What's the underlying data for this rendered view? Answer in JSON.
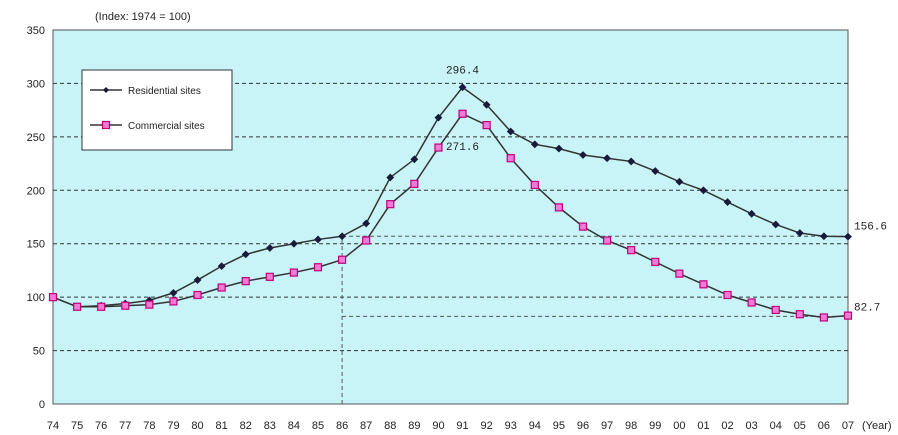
{
  "chart_data": {
    "type": "line",
    "title": "",
    "unit_note": "(Index: 1974 = 100)",
    "x_unit": "(Year)",
    "categories": [
      "74",
      "75",
      "76",
      "77",
      "78",
      "79",
      "80",
      "81",
      "82",
      "83",
      "84",
      "85",
      "86",
      "87",
      "88",
      "89",
      "90",
      "91",
      "92",
      "93",
      "94",
      "95",
      "96",
      "97",
      "98",
      "99",
      "00",
      "01",
      "02",
      "03",
      "04",
      "05",
      "06",
      "07"
    ],
    "ylim": [
      0,
      350
    ],
    "yticks": [
      0,
      50,
      100,
      150,
      200,
      250,
      300,
      350
    ],
    "grid": "horizontal-dashed",
    "background_color": "#c8f4f8",
    "legend_position": "top-left",
    "series": [
      {
        "name": "Residential sites",
        "color": "#333333",
        "marker": "diamond",
        "values": [
          100,
          91,
          92,
          94,
          97,
          104,
          116,
          129,
          140,
          146,
          150,
          154,
          157,
          169,
          212,
          229,
          268,
          296.4,
          280,
          255,
          243,
          239,
          233,
          230,
          227,
          218,
          208,
          200,
          189,
          178,
          168,
          160,
          157,
          156.6
        ]
      },
      {
        "name": "Commercial sites",
        "color": "#c0007a",
        "marker": "square",
        "values": [
          100,
          91,
          91,
          92,
          93,
          96,
          102,
          109,
          115,
          119,
          123,
          128,
          135,
          153,
          187,
          206,
          240,
          271.6,
          261,
          230,
          205,
          184,
          166,
          153,
          144,
          133,
          122,
          112,
          102,
          95,
          88,
          84,
          81,
          82.7
        ]
      }
    ],
    "annotations": [
      {
        "text": "296.4",
        "series": 0,
        "category": "91"
      },
      {
        "text": "271.6",
        "series": 1,
        "category": "91"
      },
      {
        "text": "156.6",
        "series": 0,
        "category": "07"
      },
      {
        "text": "82.7",
        "series": 1,
        "category": "07"
      }
    ],
    "reference_lines": [
      {
        "from": "86",
        "to": "07",
        "value": 157,
        "series": 0
      },
      {
        "from": "86",
        "to": "07",
        "value": 82,
        "series": 1
      },
      {
        "at": "86",
        "from_value": 0,
        "to_value": 157
      }
    ]
  }
}
